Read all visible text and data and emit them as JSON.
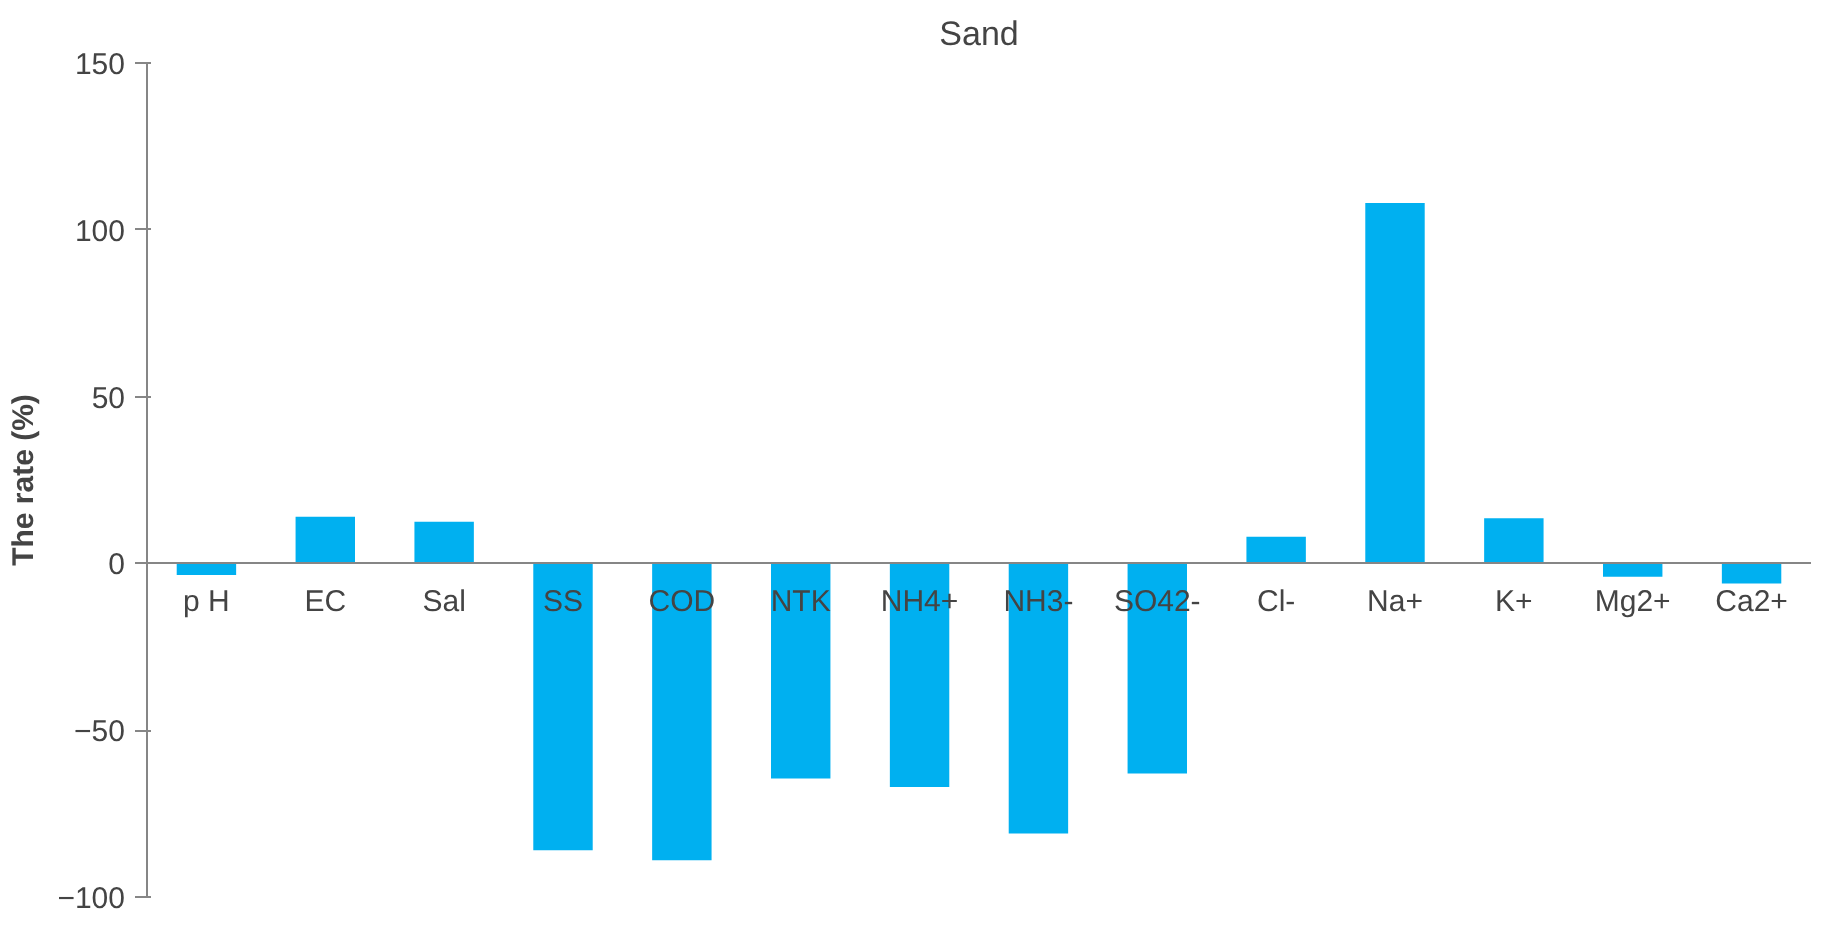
{
  "chart_data": {
    "type": "bar",
    "title": "Sand",
    "ylabel": "The rate (%)",
    "categories": [
      "p H",
      "EC",
      "Sal",
      "SS",
      "COD",
      "NTK",
      "NH4+",
      "NH3-",
      "SO42-",
      "Cl-",
      "Na+",
      "K+",
      "Mg2+",
      "Ca2+"
    ],
    "values": [
      -3.5,
      14,
      12.5,
      -86,
      -89,
      -64.5,
      -67,
      -81,
      -63,
      8,
      108,
      13.5,
      -4,
      -6
    ],
    "color": "#00b0f0",
    "ylim": [
      -100,
      150
    ],
    "yticks": [
      -100,
      -50,
      0,
      50,
      100,
      150
    ],
    "grid": false
  }
}
